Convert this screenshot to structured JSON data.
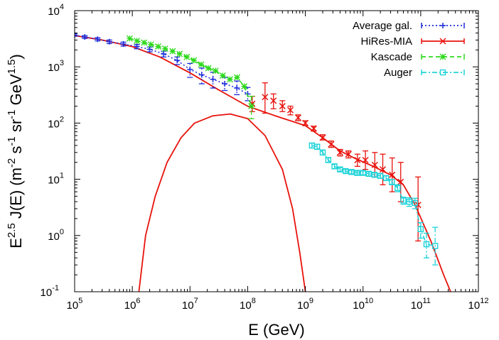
{
  "chart_data": {
    "type": "scatter",
    "x_scale": "log",
    "y_scale": "log",
    "xlim": [
      100000,
      1000000000000
    ],
    "ylim": [
      0.1,
      10000
    ],
    "xlabel": "E (GeV)",
    "ylabel": "E^2.5 J(E) (m^-2 s^-1 sr^-1 GeV^1.5)",
    "x_ticks": [
      {
        "value": 100000,
        "base": "10",
        "exp": "5"
      },
      {
        "value": 1000000,
        "base": "10",
        "exp": "6"
      },
      {
        "value": 10000000,
        "base": "10",
        "exp": "7"
      },
      {
        "value": 100000000,
        "base": "10",
        "exp": "8"
      },
      {
        "value": 1000000000,
        "base": "10",
        "exp": "9"
      },
      {
        "value": 10000000000,
        "base": "10",
        "exp": "10"
      },
      {
        "value": 100000000000,
        "base": "10",
        "exp": "11"
      },
      {
        "value": 1000000000000,
        "base": "10",
        "exp": "12"
      }
    ],
    "y_ticks": [
      {
        "value": 0.1,
        "base": "10",
        "exp": "-1"
      },
      {
        "value": 1,
        "base": "10",
        "exp": "0"
      },
      {
        "value": 10,
        "base": "10",
        "exp": "1"
      },
      {
        "value": 100,
        "base": "10",
        "exp": "2"
      },
      {
        "value": 1000,
        "base": "10",
        "exp": "3"
      },
      {
        "value": 10000,
        "base": "10",
        "exp": "4"
      }
    ],
    "legend_position": "top-right",
    "series": [
      {
        "name": "Average gal.",
        "color": "#1a2adb",
        "marker": "plus",
        "line": "dotted",
        "points": [
          {
            "x": 100000,
            "y": 3700,
            "ylo": 3500,
            "yhi": 3900
          },
          {
            "x": 150000,
            "y": 3400,
            "ylo": 3200,
            "yhi": 3600
          },
          {
            "x": 250000,
            "y": 3100,
            "ylo": 2900,
            "yhi": 3300
          },
          {
            "x": 400000,
            "y": 2800,
            "ylo": 2600,
            "yhi": 3000
          },
          {
            "x": 700000,
            "y": 2550,
            "ylo": 2350,
            "yhi": 2750
          },
          {
            "x": 1200000,
            "y": 2300,
            "ylo": 2100,
            "yhi": 2500
          },
          {
            "x": 2000000,
            "y": 2050,
            "ylo": 1850,
            "yhi": 2250
          },
          {
            "x": 3500000,
            "y": 1700,
            "ylo": 1500,
            "yhi": 1900
          },
          {
            "x": 6000000,
            "y": 1300,
            "ylo": 1100,
            "yhi": 1500
          },
          {
            "x": 10000000,
            "y": 900,
            "ylo": 650,
            "yhi": 1150
          },
          {
            "x": 16000000,
            "y": 720,
            "ylo": 500,
            "yhi": 950
          },
          {
            "x": 25000000,
            "y": 600,
            "ylo": 420,
            "yhi": 800
          },
          {
            "x": 40000000,
            "y": 500,
            "ylo": 380,
            "yhi": 650
          },
          {
            "x": 65000000,
            "y": 420,
            "ylo": 320,
            "yhi": 560
          },
          {
            "x": 100000000,
            "y": 330,
            "ylo": 250,
            "yhi": 430
          }
        ]
      },
      {
        "name": "HiRes-MIA",
        "color": "#e8120c",
        "marker": "x",
        "line": "solid",
        "points": [
          {
            "x": 120000000,
            "y": 220,
            "ylo": 160,
            "yhi": 300
          },
          {
            "x": 200000000,
            "y": 290,
            "ylo": 150,
            "yhi": 520
          },
          {
            "x": 280000000,
            "y": 250,
            "ylo": 180,
            "yhi": 330
          },
          {
            "x": 400000000,
            "y": 200,
            "ylo": 160,
            "yhi": 250
          },
          {
            "x": 550000000,
            "y": 170,
            "ylo": 140,
            "yhi": 200
          },
          {
            "x": 750000000,
            "y": 125,
            "ylo": 110,
            "yhi": 140
          },
          {
            "x": 1000000000,
            "y": 100,
            "ylo": 90,
            "yhi": 110
          },
          {
            "x": 1400000000,
            "y": 80,
            "ylo": 72,
            "yhi": 88
          },
          {
            "x": 2000000000,
            "y": 55,
            "ylo": 50,
            "yhi": 62
          },
          {
            "x": 2800000000,
            "y": 42,
            "ylo": 37,
            "yhi": 48
          },
          {
            "x": 4000000000,
            "y": 30,
            "ylo": 26,
            "yhi": 34
          },
          {
            "x": 5600000000,
            "y": 28,
            "ylo": 24,
            "yhi": 32
          },
          {
            "x": 8000000000,
            "y": 22,
            "ylo": 17,
            "yhi": 28
          },
          {
            "x": 11000000000,
            "y": 22,
            "ylo": 15,
            "yhi": 32
          },
          {
            "x": 16000000000,
            "y": 18,
            "ylo": 11,
            "yhi": 30
          },
          {
            "x": 22000000000,
            "y": 15,
            "ylo": 8,
            "yhi": 28
          },
          {
            "x": 32000000000,
            "y": 12,
            "ylo": 6,
            "yhi": 24
          },
          {
            "x": 45000000000,
            "y": 9,
            "ylo": 4,
            "yhi": 20
          },
          {
            "x": 90000000000,
            "y": 3.5,
            "ylo": 0.8,
            "yhi": 11
          }
        ]
      },
      {
        "name": "Kascade",
        "color": "#2ed91c",
        "marker": "star",
        "line": "dashed",
        "points": [
          {
            "x": 900000,
            "y": 3200
          },
          {
            "x": 1200000,
            "y": 2900
          },
          {
            "x": 1600000,
            "y": 2700
          },
          {
            "x": 2100000,
            "y": 2500
          },
          {
            "x": 2800000,
            "y": 2300
          },
          {
            "x": 3700000,
            "y": 2100
          },
          {
            "x": 5000000,
            "y": 1900
          },
          {
            "x": 6600000,
            "y": 1700
          },
          {
            "x": 8800000,
            "y": 1500
          },
          {
            "x": 11700000,
            "y": 1300
          },
          {
            "x": 15600000,
            "y": 1100
          },
          {
            "x": 20800000,
            "y": 950
          },
          {
            "x": 27700000,
            "y": 850
          },
          {
            "x": 36900000,
            "y": 700
          },
          {
            "x": 49200000,
            "y": 600
          },
          {
            "x": 65500000,
            "y": 650
          },
          {
            "x": 87300000,
            "y": 450
          },
          {
            "x": 116000000,
            "y": 200,
            "ylo": 120,
            "yhi": 300
          }
        ]
      },
      {
        "name": "Auger",
        "color": "#1ed3d8",
        "marker": "square",
        "line": "dashdot",
        "points": [
          {
            "x": 1300000000,
            "y": 40,
            "ylo": 36,
            "yhi": 44
          },
          {
            "x": 1600000000,
            "y": 38,
            "ylo": 34,
            "yhi": 42
          },
          {
            "x": 2000000000,
            "y": 30,
            "ylo": 27,
            "yhi": 33
          },
          {
            "x": 2500000000,
            "y": 22,
            "ylo": 20,
            "yhi": 24
          },
          {
            "x": 3200000000,
            "y": 17,
            "ylo": 15.5,
            "yhi": 18.5
          },
          {
            "x": 4000000000,
            "y": 15,
            "ylo": 13.8,
            "yhi": 16.2
          },
          {
            "x": 5000000000,
            "y": 14,
            "ylo": 12.9,
            "yhi": 15.1
          },
          {
            "x": 6300000000,
            "y": 13.5,
            "ylo": 12.5,
            "yhi": 14.5
          },
          {
            "x": 7900000000,
            "y": 13,
            "ylo": 12,
            "yhi": 14
          },
          {
            "x": 10000000000,
            "y": 13,
            "ylo": 12,
            "yhi": 14
          },
          {
            "x": 12600000000,
            "y": 12.5,
            "ylo": 11.5,
            "yhi": 13.5
          },
          {
            "x": 15800000000,
            "y": 12,
            "ylo": 11,
            "yhi": 13
          },
          {
            "x": 20000000000,
            "y": 11.5,
            "ylo": 10.5,
            "yhi": 12.5
          },
          {
            "x": 25100000000,
            "y": 10.5,
            "ylo": 9.5,
            "yhi": 11.5
          },
          {
            "x": 31600000000,
            "y": 9,
            "ylo": 8,
            "yhi": 10
          },
          {
            "x": 39800000000,
            "y": 7,
            "ylo": 6,
            "yhi": 8
          },
          {
            "x": 50100000000,
            "y": 4.2,
            "ylo": 3.6,
            "yhi": 4.8
          },
          {
            "x": 63100000000,
            "y": 4,
            "ylo": 3.3,
            "yhi": 4.7
          },
          {
            "x": 79400000000,
            "y": 3.8,
            "ylo": 3,
            "yhi": 4.6
          },
          {
            "x": 100000000000,
            "y": 1.3,
            "ylo": 0.9,
            "yhi": 1.7
          },
          {
            "x": 126000000000,
            "y": 0.7,
            "ylo": 0.4,
            "yhi": 1.1
          },
          {
            "x": 178000000000,
            "y": 0.65,
            "ylo": 0.3,
            "yhi": 1.4
          }
        ]
      }
    ],
    "curves": [
      {
        "color": "#e8120c",
        "points": [
          {
            "x": 100000,
            "y": 3600
          },
          {
            "x": 300000,
            "y": 3000
          },
          {
            "x": 1000000,
            "y": 2300
          },
          {
            "x": 3000000,
            "y": 1500
          },
          {
            "x": 10000000,
            "y": 780
          },
          {
            "x": 30000000,
            "y": 400
          },
          {
            "x": 100000000,
            "y": 200
          },
          {
            "x": 300000000,
            "y": 135
          },
          {
            "x": 1000000000,
            "y": 90
          },
          {
            "x": 2000000000,
            "y": 55
          },
          {
            "x": 4000000000,
            "y": 32
          },
          {
            "x": 7000000000,
            "y": 24
          },
          {
            "x": 15000000000,
            "y": 17
          },
          {
            "x": 30000000000,
            "y": 12
          },
          {
            "x": 50000000000,
            "y": 8
          },
          {
            "x": 80000000000,
            "y": 3.5
          },
          {
            "x": 150000000000,
            "y": 0.8
          },
          {
            "x": 250000000000,
            "y": 0.2
          },
          {
            "x": 330000000000,
            "y": 0.1
          }
        ]
      },
      {
        "color": "#e8120c",
        "points": [
          {
            "x": 1300000,
            "y": 0.1
          },
          {
            "x": 1700000,
            "y": 1
          },
          {
            "x": 2500000,
            "y": 5
          },
          {
            "x": 4000000,
            "y": 20
          },
          {
            "x": 7000000,
            "y": 55
          },
          {
            "x": 12000000,
            "y": 100
          },
          {
            "x": 25000000,
            "y": 135
          },
          {
            "x": 50000000,
            "y": 145
          },
          {
            "x": 100000000,
            "y": 120
          },
          {
            "x": 200000000,
            "y": 60
          },
          {
            "x": 400000000,
            "y": 15
          },
          {
            "x": 600000000,
            "y": 3
          },
          {
            "x": 800000000,
            "y": 0.5
          },
          {
            "x": 1000000000,
            "y": 0.1
          }
        ]
      }
    ]
  }
}
